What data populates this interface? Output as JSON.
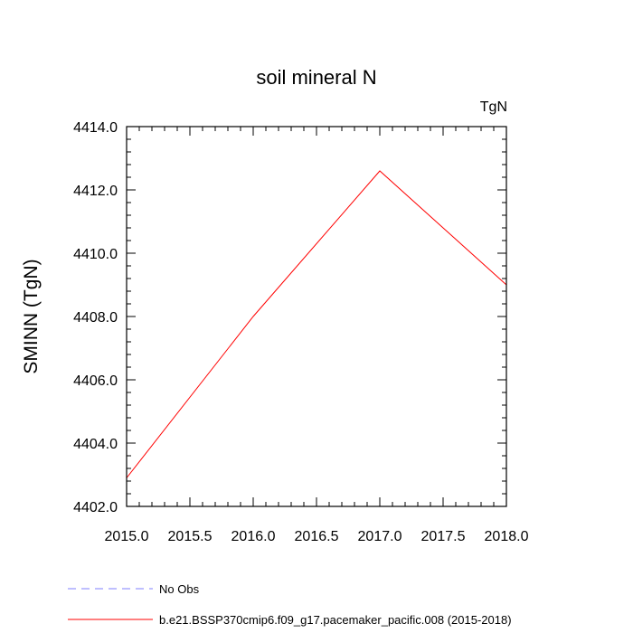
{
  "chart_data": {
    "type": "line",
    "title": "soil mineral N",
    "units_label": "TgN",
    "xlabel": "",
    "ylabel": "SMINN  (TgN)",
    "xlim": [
      2015.0,
      2018.0
    ],
    "ylim": [
      4402.0,
      4414.0
    ],
    "x_ticks": [
      "2015.0",
      "2015.5",
      "2016.0",
      "2016.5",
      "2017.0",
      "2017.5",
      "2018.0"
    ],
    "y_ticks": [
      "4402.0",
      "4404.0",
      "4406.0",
      "4408.0",
      "4410.0",
      "4412.0",
      "4414.0"
    ],
    "grid": false,
    "legend_position": "bottom-left",
    "series": [
      {
        "name": "b.e21.BSSP370cmip6.f09_g17.pacemaker_pacific.008 (2015-2018)",
        "color": "#ff0000",
        "style": "solid",
        "x": [
          2015.0,
          2016.0,
          2017.0,
          2018.0
        ],
        "y": [
          4402.9,
          4408.0,
          4412.6,
          4409.0
        ]
      }
    ],
    "legend": [
      {
        "label": "No Obs",
        "color": "#7f7fff",
        "style": "dashed"
      },
      {
        "label": "b.e21.BSSP370cmip6.f09_g17.pacemaker_pacific.008 (2015-2018)",
        "color": "#ff0000",
        "style": "solid"
      }
    ]
  }
}
